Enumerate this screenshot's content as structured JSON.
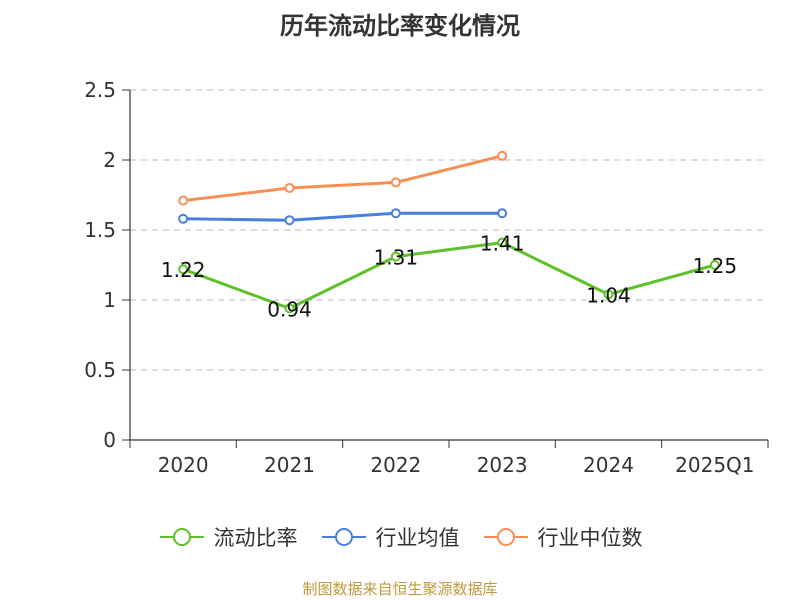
{
  "chart_data": {
    "type": "line",
    "title": "历年流动比率变化情况",
    "categories": [
      "2020",
      "2021",
      "2022",
      "2023",
      "2024",
      "2025Q1"
    ],
    "ylim": [
      0,
      2.5
    ],
    "yticks": [
      "0",
      "0.5",
      "1",
      "1.5",
      "2",
      "2.5"
    ],
    "series": [
      {
        "name": "流动比率",
        "color": "#5dc12a",
        "values": [
          1.22,
          0.94,
          1.31,
          1.41,
          1.04,
          1.25
        ],
        "labels": [
          "1.22",
          "0.94",
          "1.31",
          "1.41",
          "1.04",
          "1.25"
        ]
      },
      {
        "name": "行业均值",
        "color": "#4a7fdc",
        "values": [
          1.58,
          1.57,
          1.62,
          1.62,
          null,
          null
        ]
      },
      {
        "name": "行业中位数",
        "color": "#f78f55",
        "values": [
          1.71,
          1.8,
          1.84,
          2.03,
          null,
          null
        ]
      }
    ],
    "legend_position": "bottom",
    "grid": true
  },
  "source": "制图数据来自恒生聚源数据库"
}
